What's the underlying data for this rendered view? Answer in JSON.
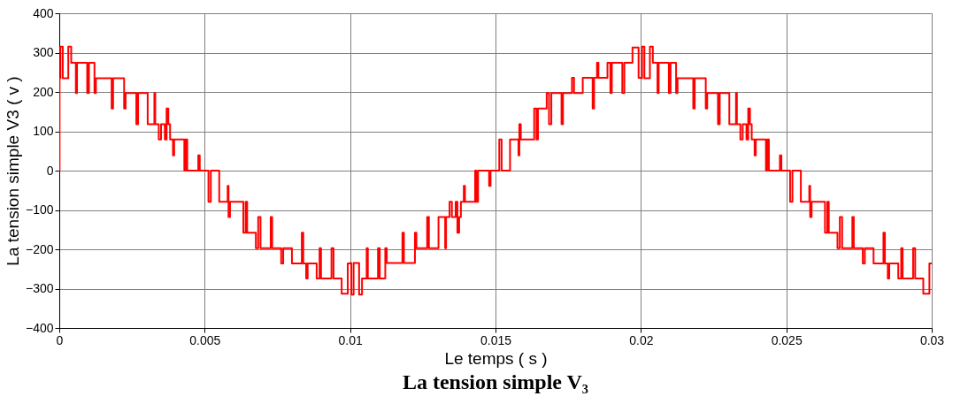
{
  "chart_data": {
    "type": "step",
    "title": "La tension simple V₃",
    "xlabel": "Le temps ( s )",
    "ylabel": "La tension simple V3 ( v )",
    "xlim": [
      0,
      0.03
    ],
    "xticks": [
      0,
      0.005,
      0.01,
      0.015,
      0.02,
      0.025,
      0.03
    ],
    "ylim": [
      -400,
      400
    ],
    "yticks": [
      -400,
      -300,
      -200,
      -100,
      0,
      100,
      200,
      300,
      400
    ],
    "grid": true,
    "marker": "none",
    "line_style": "solid",
    "series": [
      {
        "color": "#ff0000",
        "x": [
          0,
          1e-05,
          4e-05,
          0.00012,
          0.00031,
          0.00041,
          0.00057,
          0.00061,
          0.00096,
          0.00102,
          0.00121,
          0.00126,
          0.0018,
          0.00185,
          0.00223,
          0.00228,
          0.00265,
          0.00271,
          0.00304,
          0.00327,
          0.0033,
          0.00342,
          0.0035,
          0.00363,
          0.00369,
          0.00375,
          0.00381,
          0.00391,
          0.00395,
          0.0043,
          0.00434,
          0.0044,
          0.00478,
          0.00483,
          0.00513,
          0.00521,
          0.0055,
          0.00579,
          0.00582,
          0.00587,
          0.00633,
          0.00641,
          0.00646,
          0.00676,
          0.00684,
          0.00692,
          0.00727,
          0.00732,
          0.00763,
          0.0077,
          0.008,
          0.00834,
          0.00839,
          0.00849,
          0.00854,
          0.00885,
          0.00895,
          0.009,
          0.00936,
          0.00943,
          0.00971,
          0.00987,
          0.00992,
          0.01001,
          0.01004,
          0.01012,
          0.01031,
          0.01041,
          0.01057,
          0.01061,
          0.01096,
          0.01102,
          0.01121,
          0.01126,
          0.0118,
          0.01185,
          0.01223,
          0.01228,
          0.01265,
          0.01271,
          0.01304,
          0.01327,
          0.0133,
          0.01342,
          0.0135,
          0.01363,
          0.01369,
          0.01375,
          0.01381,
          0.01391,
          0.01395,
          0.0143,
          0.01434,
          0.0144,
          0.01478,
          0.01483,
          0.01513,
          0.01521,
          0.0155,
          0.01579,
          0.01582,
          0.01587,
          0.01633,
          0.01641,
          0.01646,
          0.01676,
          0.01684,
          0.01692,
          0.01727,
          0.01732,
          0.01763,
          0.0177,
          0.018,
          0.01834,
          0.01839,
          0.01849,
          0.01854,
          0.01885,
          0.01895,
          0.019,
          0.01936,
          0.01943,
          0.01971,
          0.01987,
          0.01992,
          0.02001,
          0.02004,
          0.02012,
          0.02031,
          0.02041,
          0.02057,
          0.02061,
          0.02096,
          0.02102,
          0.02121,
          0.02126,
          0.0218,
          0.02185,
          0.02223,
          0.02228,
          0.02265,
          0.02271,
          0.02304,
          0.02327,
          0.0233,
          0.02342,
          0.0235,
          0.02363,
          0.02369,
          0.02375,
          0.02381,
          0.02391,
          0.02395,
          0.0243,
          0.02434,
          0.0244,
          0.02478,
          0.02483,
          0.02513,
          0.02521,
          0.0255,
          0.02579,
          0.02582,
          0.02587,
          0.02633,
          0.02641,
          0.02646,
          0.02676,
          0.02684,
          0.02692,
          0.02727,
          0.02732,
          0.02763,
          0.0277,
          0.028,
          0.02834,
          0.02839,
          0.02849,
          0.02854,
          0.02885,
          0.02895,
          0.029,
          0.02936,
          0.02943,
          0.02971,
          0.02987,
          0.02992,
          0.03
        ],
        "values": [
          0,
          235,
          315,
          235,
          315,
          274,
          197,
          274,
          197,
          274,
          197,
          235,
          158,
          235,
          158,
          197,
          118,
          197,
          118,
          197,
          118,
          79,
          118,
          79,
          158,
          118,
          79,
          39,
          79,
          0,
          79,
          0,
          39,
          0,
          -79,
          0,
          -79,
          -39,
          -118,
          -79,
          -158,
          -79,
          -158,
          -197,
          -118,
          -197,
          -118,
          -197,
          -236,
          -197,
          -236,
          -158,
          -236,
          -274,
          -236,
          -274,
          -197,
          -274,
          -197,
          -274,
          -313,
          -313,
          -236,
          -235,
          -315,
          -235,
          -315,
          -274,
          -197,
          -274,
          -197,
          -274,
          -197,
          -235,
          -158,
          -235,
          -158,
          -197,
          -118,
          -197,
          -118,
          -197,
          -118,
          -79,
          -118,
          -79,
          -158,
          -118,
          -79,
          -39,
          -79,
          0,
          -79,
          0,
          -39,
          0,
          79,
          0,
          79,
          39,
          118,
          79,
          158,
          79,
          158,
          197,
          118,
          197,
          118,
          197,
          236,
          197,
          236,
          158,
          236,
          274,
          236,
          274,
          197,
          274,
          197,
          274,
          313,
          313,
          236,
          235,
          315,
          235,
          315,
          274,
          197,
          274,
          197,
          274,
          197,
          235,
          158,
          235,
          158,
          197,
          118,
          197,
          118,
          197,
          118,
          79,
          118,
          79,
          158,
          118,
          79,
          39,
          79,
          0,
          79,
          0,
          39,
          0,
          -79,
          0,
          -79,
          -39,
          -118,
          -79,
          -158,
          -79,
          -158,
          -197,
          -118,
          -197,
          -118,
          -197,
          -236,
          -197,
          -236,
          -158,
          -236,
          -274,
          -236,
          -274,
          -197,
          -274,
          -197,
          -274,
          -313,
          -313,
          -236,
          -236
        ]
      }
    ]
  }
}
